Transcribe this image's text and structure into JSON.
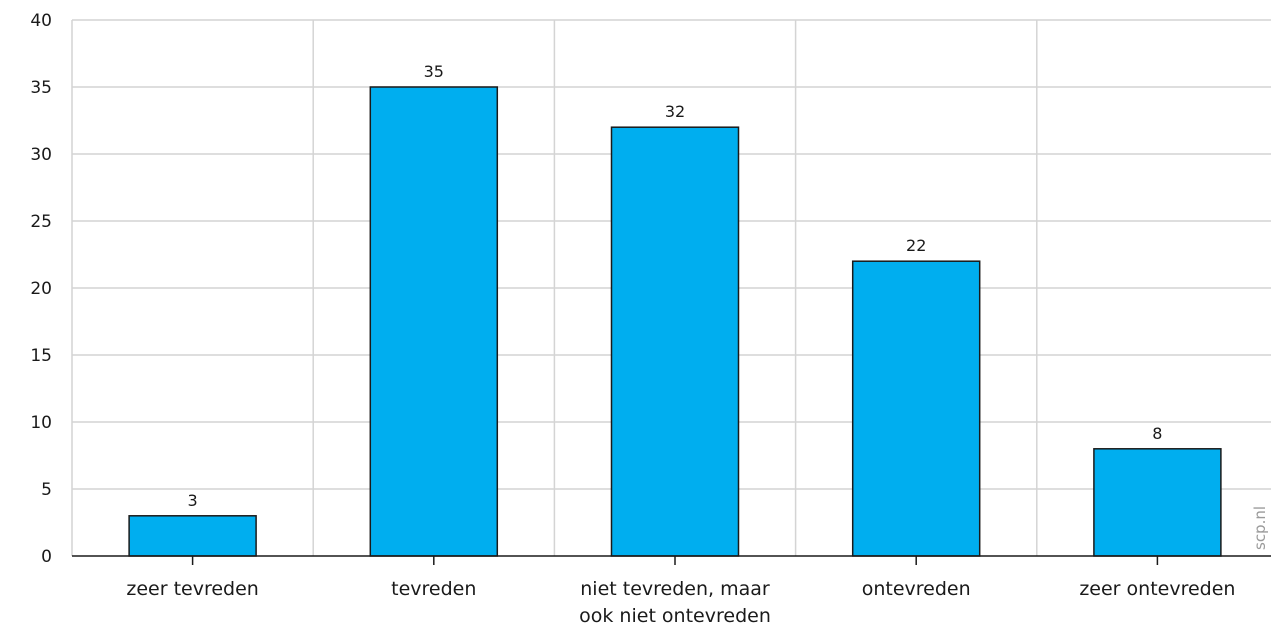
{
  "chart_data": {
    "type": "bar",
    "categories": [
      [
        "zeer tevreden"
      ],
      [
        "tevreden"
      ],
      [
        "niet tevreden, maar",
        "ook niet ontevreden"
      ],
      [
        "ontevreden"
      ],
      [
        "zeer ontevreden"
      ]
    ],
    "values": [
      3,
      35,
      32,
      22,
      8
    ],
    "data_labels": [
      "3",
      "35",
      "32",
      "22",
      "8"
    ],
    "ylim": [
      0,
      40
    ],
    "yticks": [
      0,
      5,
      10,
      15,
      20,
      25,
      30,
      35,
      40
    ],
    "grid": true,
    "bar_color": "#00aeef",
    "bar_edge_color": "#1a1a1a"
  },
  "watermark": "scp.nl"
}
